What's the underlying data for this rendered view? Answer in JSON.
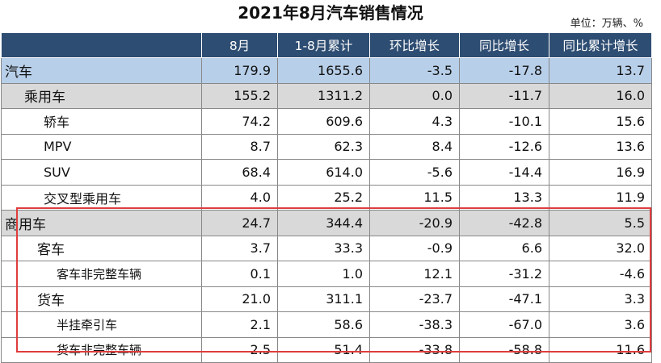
{
  "title": "2021年8月汽车销售情况",
  "unit": "单位：万辆、%",
  "columns": [
    "",
    "8月",
    "1-8月累计",
    "环比增长",
    "同比增长",
    "同比累计增长"
  ],
  "rows": [
    {
      "name": "汽车",
      "level": "lvl0",
      "values": [
        "179.9",
        "1655.6",
        "-3.5",
        "-17.8",
        "13.7"
      ]
    },
    {
      "name": "乘用车",
      "level": "lvl1",
      "values": [
        "155.2",
        "1311.2",
        "0.0",
        "-11.7",
        "16.0"
      ]
    },
    {
      "name": "轿车",
      "level": "lvl2",
      "values": [
        "74.2",
        "609.6",
        "4.3",
        "-10.1",
        "15.6"
      ]
    },
    {
      "name": "MPV",
      "level": "lvl2",
      "values": [
        "8.7",
        "62.3",
        "8.4",
        "-12.6",
        "13.6"
      ]
    },
    {
      "name": "SUV",
      "level": "lvl2",
      "values": [
        "68.4",
        "614.0",
        "-5.6",
        "-14.4",
        "16.9"
      ]
    },
    {
      "name": "交叉型乘用车",
      "level": "lvl2",
      "values": [
        "4.0",
        "25.2",
        "11.5",
        "13.3",
        "11.9"
      ]
    },
    {
      "name": "商用车",
      "level": "lvl1 lvl1b",
      "values": [
        "24.7",
        "344.4",
        "-20.9",
        "-42.8",
        "5.5"
      ]
    },
    {
      "name": "客车",
      "level": "lvl2b",
      "values": [
        "3.7",
        "33.3",
        "-0.9",
        "6.6",
        "32.0"
      ]
    },
    {
      "name": "客车非完整车辆",
      "level": "lvl3",
      "values": [
        "0.1",
        "1.0",
        "12.1",
        "-31.2",
        "-4.6"
      ]
    },
    {
      "name": "货车",
      "level": "lvl2b",
      "values": [
        "21.0",
        "311.1",
        "-23.7",
        "-47.1",
        "3.3"
      ]
    },
    {
      "name": "半挂牵引车",
      "level": "lvl3",
      "values": [
        "2.1",
        "58.6",
        "-38.3",
        "-67.0",
        "3.6"
      ]
    },
    {
      "name": "货车非完整车辆",
      "level": "lvl3",
      "values": [
        "2.5",
        "51.4",
        "-33.8",
        "-58.8",
        "11.6"
      ]
    }
  ],
  "colors": {
    "header_bg": "#2e4d72",
    "total_row_bg": "#b8cfe9",
    "category_row_bg": "#d9d9d9",
    "highlight_border": "#e03c3c"
  }
}
